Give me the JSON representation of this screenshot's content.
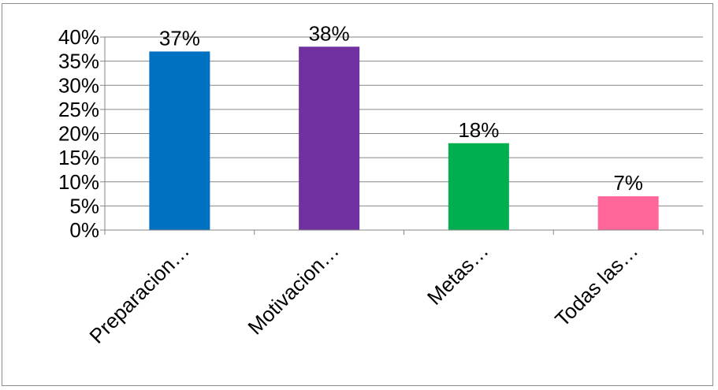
{
  "chart_data": {
    "type": "bar",
    "categories": [
      "Preparacion…",
      "Motivacion…",
      "Metas…",
      "Todas las…"
    ],
    "values": [
      37,
      38,
      18,
      7
    ],
    "data_labels": [
      "37%",
      "38%",
      "18%",
      "7%"
    ],
    "colors": [
      "#0070C0",
      "#7030A0",
      "#00B050",
      "#FF6699"
    ],
    "ylim": [
      0,
      40
    ],
    "ytick_values": [
      0,
      5,
      10,
      15,
      20,
      25,
      30,
      35,
      40
    ],
    "ytick_labels": [
      "0%",
      "5%",
      "10%",
      "15%",
      "20%",
      "25%",
      "30%",
      "35%",
      "40%"
    ],
    "grid": true,
    "legend": "none"
  }
}
